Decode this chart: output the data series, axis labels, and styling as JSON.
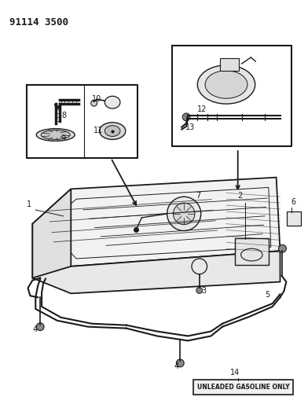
{
  "title": "91114 3500",
  "background_color": "#ffffff",
  "line_color": "#1a1a1a",
  "unleaded_text": "UNLEADED GASOLINE ONLY"
}
